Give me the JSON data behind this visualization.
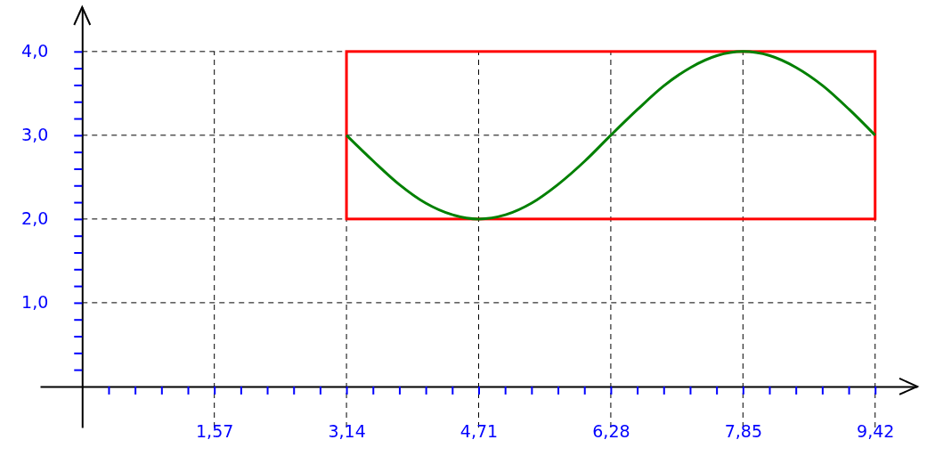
{
  "chart_data": {
    "type": "line",
    "x": [
      3.14,
      3.46,
      3.77,
      4.08,
      4.4,
      4.71,
      5.03,
      5.34,
      5.65,
      5.97,
      6.28,
      6.6,
      6.91,
      7.23,
      7.54,
      7.85,
      8.17,
      8.48,
      8.8,
      9.11,
      9.42
    ],
    "series": [
      {
        "color": "#008000",
        "values": [
          3.0,
          2.69,
          2.41,
          2.19,
          2.05,
          2.0,
          2.05,
          2.19,
          2.41,
          2.69,
          3.0,
          3.31,
          3.59,
          3.81,
          3.95,
          4.0,
          3.95,
          3.81,
          3.59,
          3.31,
          3.0
        ]
      }
    ],
    "xlim": [
      -0.5,
      9.92
    ],
    "ylim": [
      -0.49,
      4.53
    ],
    "xticks": [
      {
        "value": 0.314,
        "label": null
      },
      {
        "value": 0.628,
        "label": null
      },
      {
        "value": 0.942,
        "label": null
      },
      {
        "value": 1.256,
        "label": null
      },
      {
        "value": 1.57,
        "label": "1,57"
      },
      {
        "value": 1.884,
        "label": null
      },
      {
        "value": 2.198,
        "label": null
      },
      {
        "value": 2.512,
        "label": null
      },
      {
        "value": 2.826,
        "label": null
      },
      {
        "value": 3.14,
        "label": "3,14"
      },
      {
        "value": 3.454,
        "label": null
      },
      {
        "value": 3.768,
        "label": null
      },
      {
        "value": 4.082,
        "label": null
      },
      {
        "value": 4.396,
        "label": null
      },
      {
        "value": 4.71,
        "label": "4,71"
      },
      {
        "value": 5.024,
        "label": null
      },
      {
        "value": 5.338,
        "label": null
      },
      {
        "value": 5.652,
        "label": null
      },
      {
        "value": 5.966,
        "label": null
      },
      {
        "value": 6.28,
        "label": "6,28"
      },
      {
        "value": 6.594,
        "label": null
      },
      {
        "value": 6.908,
        "label": null
      },
      {
        "value": 7.222,
        "label": null
      },
      {
        "value": 7.536,
        "label": null
      },
      {
        "value": 7.85,
        "label": "7,85"
      },
      {
        "value": 8.164,
        "label": null
      },
      {
        "value": 8.478,
        "label": null
      },
      {
        "value": 8.792,
        "label": null
      },
      {
        "value": 9.106,
        "label": null
      },
      {
        "value": 9.42,
        "label": "9,42"
      }
    ],
    "yticks": [
      {
        "value": 0.2,
        "label": null
      },
      {
        "value": 0.4,
        "label": null
      },
      {
        "value": 0.6,
        "label": null
      },
      {
        "value": 0.8,
        "label": null
      },
      {
        "value": 1.0,
        "label": "1,0"
      },
      {
        "value": 1.2,
        "label": null
      },
      {
        "value": 1.4,
        "label": null
      },
      {
        "value": 1.6,
        "label": null
      },
      {
        "value": 1.8,
        "label": null
      },
      {
        "value": 2.0,
        "label": "2,0"
      },
      {
        "value": 2.2,
        "label": null
      },
      {
        "value": 2.4,
        "label": null
      },
      {
        "value": 2.6,
        "label": null
      },
      {
        "value": 2.8,
        "label": null
      },
      {
        "value": 3.0,
        "label": "3,0"
      },
      {
        "value": 3.2,
        "label": null
      },
      {
        "value": 3.4,
        "label": null
      },
      {
        "value": 3.6,
        "label": null
      },
      {
        "value": 3.8,
        "label": null
      },
      {
        "value": 4.0,
        "label": "4,0"
      }
    ],
    "grid": true,
    "line_style": "solid",
    "marker": "none"
  }
}
